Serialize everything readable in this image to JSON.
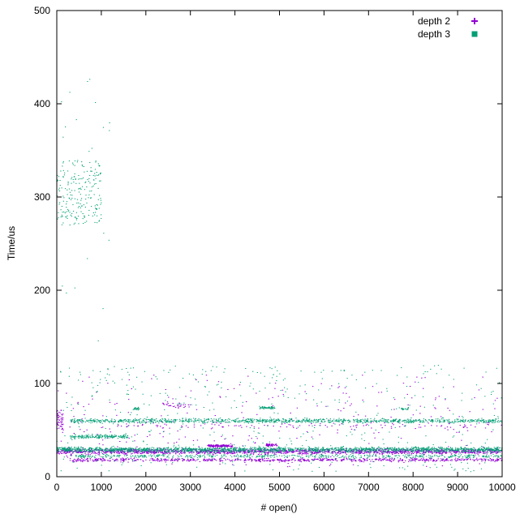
{
  "chart_data": {
    "type": "scatter",
    "title": "",
    "xlabel": "# open()",
    "ylabel": "Time/us",
    "xlim": [
      0,
      10000
    ],
    "ylim": [
      0,
      500
    ],
    "xticks": [
      0,
      1000,
      2000,
      3000,
      4000,
      5000,
      6000,
      7000,
      8000,
      9000,
      10000
    ],
    "yticks": [
      0,
      100,
      200,
      300,
      400,
      500
    ],
    "grid": false,
    "legend_position": "top-right",
    "series": [
      {
        "name": "depth 2",
        "color": "#9400d3",
        "marker": "plus",
        "bands": [
          {
            "x_start": 0,
            "x_end": 10000,
            "y_center": 27,
            "y_spread": 3,
            "points": 1600
          },
          {
            "x_start": 300,
            "x_end": 10000,
            "y_center": 18,
            "y_spread": 2,
            "points": 700
          },
          {
            "x_start": 3400,
            "x_end": 3950,
            "y_center": 33,
            "y_spread": 1.5,
            "points": 120
          },
          {
            "x_start": 4700,
            "x_end": 4950,
            "y_center": 34,
            "y_spread": 1.5,
            "points": 50
          },
          {
            "x_start": 1000,
            "x_end": 10000,
            "y_center": 55,
            "y_spread": 4,
            "points": 120
          },
          {
            "x_start": 2300,
            "x_end": 3000,
            "y_center": 77,
            "y_spread": 3,
            "points": 30
          },
          {
            "x_start": 0,
            "x_end": 150,
            "y_center": 60,
            "y_spread": 12,
            "points": 50
          }
        ],
        "scatter": [
          {
            "x_start": 0,
            "x_end": 10000,
            "y_min": 10,
            "y_max": 110,
            "points": 300
          }
        ]
      },
      {
        "name": "depth 3",
        "color": "#009e73",
        "marker": "square",
        "bands": [
          {
            "x_start": 0,
            "x_end": 10000,
            "y_center": 29,
            "y_spread": 3,
            "points": 1900
          },
          {
            "x_start": 300,
            "x_end": 10000,
            "y_center": 60,
            "y_spread": 2.5,
            "points": 1100
          },
          {
            "x_start": 300,
            "x_end": 1600,
            "y_center": 43,
            "y_spread": 2,
            "points": 180
          },
          {
            "x_start": 300,
            "x_end": 10000,
            "y_center": 22,
            "y_spread": 2,
            "points": 500
          },
          {
            "x_start": 4550,
            "x_end": 4900,
            "y_center": 74,
            "y_spread": 1.5,
            "points": 60
          },
          {
            "x_start": 1700,
            "x_end": 1850,
            "y_center": 73,
            "y_spread": 1.5,
            "points": 20
          },
          {
            "x_start": 7700,
            "x_end": 7900,
            "y_center": 73,
            "y_spread": 1.5,
            "points": 20
          }
        ],
        "scatter": [
          {
            "x_start": 0,
            "x_end": 1000,
            "y_min": 270,
            "y_max": 340,
            "points": 220
          },
          {
            "x_start": 0,
            "x_end": 10000,
            "y_min": 5,
            "y_max": 120,
            "points": 500
          },
          {
            "x_start": 0,
            "x_end": 1200,
            "y_min": 120,
            "y_max": 470,
            "points": 25
          }
        ]
      }
    ]
  }
}
